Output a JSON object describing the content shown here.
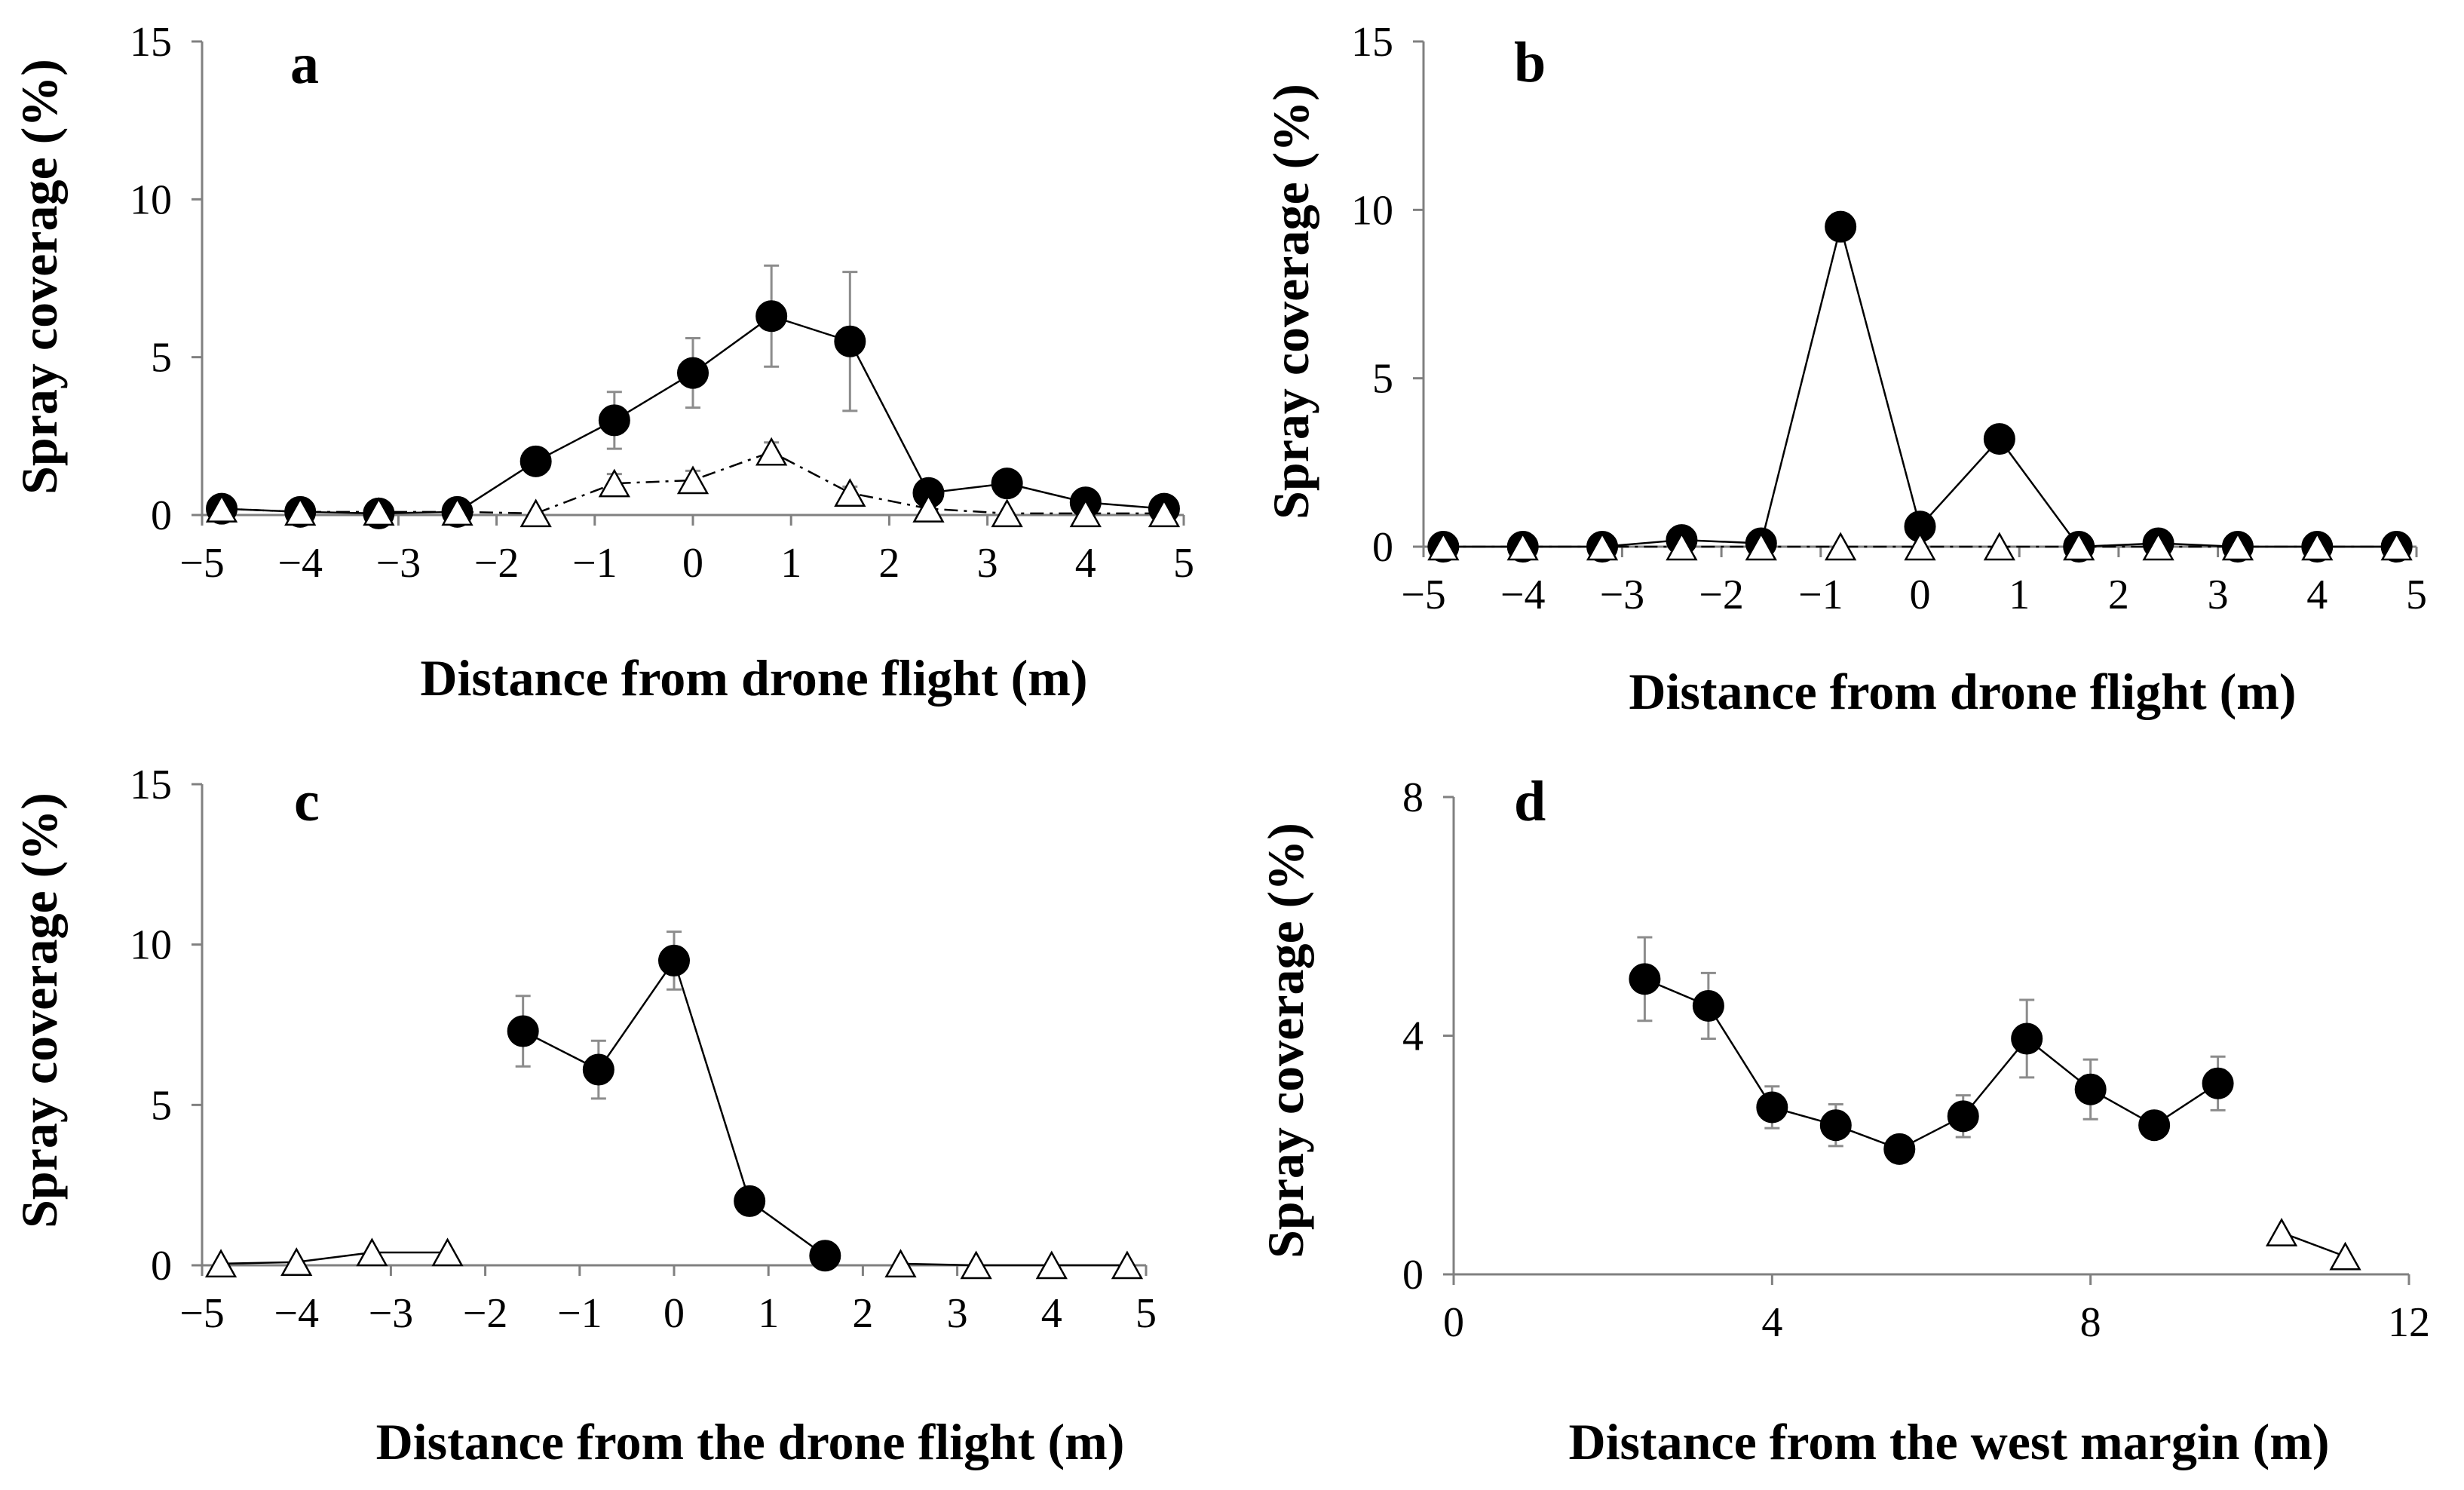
{
  "chart_data": [
    {
      "panel": "a",
      "type": "line",
      "xlabel": "Distance from drone flight (m)",
      "ylabel": "Spray coverage (%)",
      "xlim": [
        -5,
        5
      ],
      "ylim": [
        0,
        15
      ],
      "xticks": [
        "−5",
        "−4",
        "−3",
        "−2",
        "−1",
        "0",
        "1",
        "2",
        "3",
        "4",
        "5"
      ],
      "yticks": [
        "0",
        "5",
        "10",
        "15"
      ],
      "series": [
        {
          "marker": "filled-circle",
          "line": "solid",
          "x": [
            -4.8,
            -4.0,
            -3.2,
            -2.4,
            -1.6,
            -0.8,
            0.0,
            0.8,
            1.6,
            2.4,
            3.2,
            4.0,
            4.8
          ],
          "y": [
            0.2,
            0.1,
            0.05,
            0.1,
            1.7,
            3.0,
            4.5,
            6.3,
            5.5,
            0.7,
            1.0,
            0.4,
            0.2
          ],
          "err": [
            0.1,
            0.05,
            0.05,
            0.05,
            0.3,
            0.9,
            1.1,
            1.6,
            2.2,
            0.2,
            0.3,
            0.1,
            0.1
          ]
        },
        {
          "marker": "open-triangle",
          "line": "dash-dot",
          "x": [
            -4.8,
            -4.0,
            -3.2,
            -2.4,
            -1.6,
            -0.8,
            0.0,
            0.8,
            1.6,
            2.4,
            3.2,
            4.0,
            4.8
          ],
          "y": [
            0.2,
            0.1,
            0.1,
            0.1,
            0.05,
            1.0,
            1.1,
            2.0,
            0.7,
            0.2,
            0.05,
            0.05,
            0.05
          ],
          "err": [
            0,
            0,
            0,
            0,
            0,
            0.3,
            0.3,
            0.3,
            0.2,
            0,
            0,
            0,
            0
          ]
        }
      ]
    },
    {
      "panel": "b",
      "type": "line",
      "xlabel": "Distance from drone flight (m)",
      "ylabel": "Spray coverage (%)",
      "xlim": [
        -5,
        5
      ],
      "ylim": [
        0,
        15
      ],
      "xticks": [
        "−5",
        "−4",
        "−3",
        "−2",
        "−1",
        "0",
        "1",
        "2",
        "3",
        "4",
        "5"
      ],
      "yticks": [
        "0",
        "5",
        "10",
        "15"
      ],
      "series": [
        {
          "marker": "filled-circle",
          "line": "solid",
          "x": [
            -4.8,
            -4.0,
            -3.2,
            -2.4,
            -1.6,
            -0.8,
            0.0,
            0.8,
            1.6,
            2.4,
            3.2,
            4.0,
            4.8
          ],
          "y": [
            0,
            0,
            0,
            0.2,
            0.1,
            9.5,
            0.6,
            3.2,
            0,
            0.1,
            0,
            0,
            0
          ],
          "err": [
            0,
            0,
            0,
            0,
            0,
            0,
            0,
            0,
            0,
            0,
            0,
            0,
            0
          ]
        },
        {
          "marker": "open-triangle",
          "line": "dash-dot",
          "x": [
            -4.8,
            -4.0,
            -3.2,
            -2.4,
            -1.6,
            -0.8,
            0.0,
            0.8,
            1.6,
            2.4,
            3.2,
            4.0,
            4.8
          ],
          "y": [
            0,
            0,
            0,
            0,
            0,
            0,
            0,
            0,
            0,
            0,
            0,
            0,
            0
          ],
          "err": [
            0,
            0,
            0,
            0,
            0,
            0,
            0,
            0,
            0,
            0,
            0,
            0,
            0
          ]
        }
      ]
    },
    {
      "panel": "c",
      "type": "line",
      "xlabel": "Distance from the drone flight (m)",
      "ylabel": "Spray coverage (%)",
      "xlim": [
        -5,
        5
      ],
      "ylim": [
        0,
        15
      ],
      "xticks": [
        "−5",
        "−4",
        "−3",
        "−2",
        "−1",
        "0",
        "1",
        "2",
        "3",
        "4",
        "5"
      ],
      "yticks": [
        "0",
        "5",
        "10",
        "15"
      ],
      "series": [
        {
          "marker": "open-triangle",
          "line": "solid",
          "x": [
            -4.8,
            -4.0,
            -3.2,
            -2.4
          ],
          "y": [
            0.05,
            0.1,
            0.4,
            0.4
          ],
          "err": [
            0,
            0,
            0,
            0
          ]
        },
        {
          "marker": "filled-circle",
          "line": "solid",
          "x": [
            -1.6,
            -0.8,
            0.0,
            0.8,
            1.6
          ],
          "y": [
            7.3,
            6.1,
            9.5,
            2.0,
            0.3
          ],
          "err": [
            1.1,
            0.9,
            0.9,
            0,
            0
          ]
        },
        {
          "marker": "open-triangle",
          "line": "solid",
          "x": [
            2.4,
            3.2,
            4.0,
            4.8
          ],
          "y": [
            0.05,
            0,
            0,
            0
          ],
          "err": [
            0,
            0,
            0,
            0
          ]
        }
      ]
    },
    {
      "panel": "d",
      "type": "line",
      "xlabel": "Distance from the west margin  (m)",
      "ylabel": "Spray coverage (%)",
      "xlim": [
        0,
        12
      ],
      "ylim": [
        0,
        8
      ],
      "xticks": [
        "0",
        "4",
        "8",
        "12"
      ],
      "yticks": [
        "0",
        "4",
        "8"
      ],
      "series": [
        {
          "marker": "filled-circle",
          "line": "solid",
          "x": [
            2.4,
            3.2,
            4.0,
            4.8,
            5.6,
            6.4,
            7.2,
            8.0,
            8.8,
            9.6
          ],
          "y": [
            4.95,
            4.5,
            2.8,
            2.5,
            2.1,
            2.65,
            3.95,
            3.1,
            2.5,
            3.2
          ],
          "err": [
            0.7,
            0.55,
            0.35,
            0.35,
            0,
            0.35,
            0.65,
            0.5,
            0,
            0.45
          ]
        },
        {
          "marker": "open-triangle",
          "line": "solid",
          "x": [
            10.4,
            11.2
          ],
          "y": [
            0.7,
            0.3
          ],
          "err": [
            0,
            0
          ]
        }
      ]
    }
  ]
}
